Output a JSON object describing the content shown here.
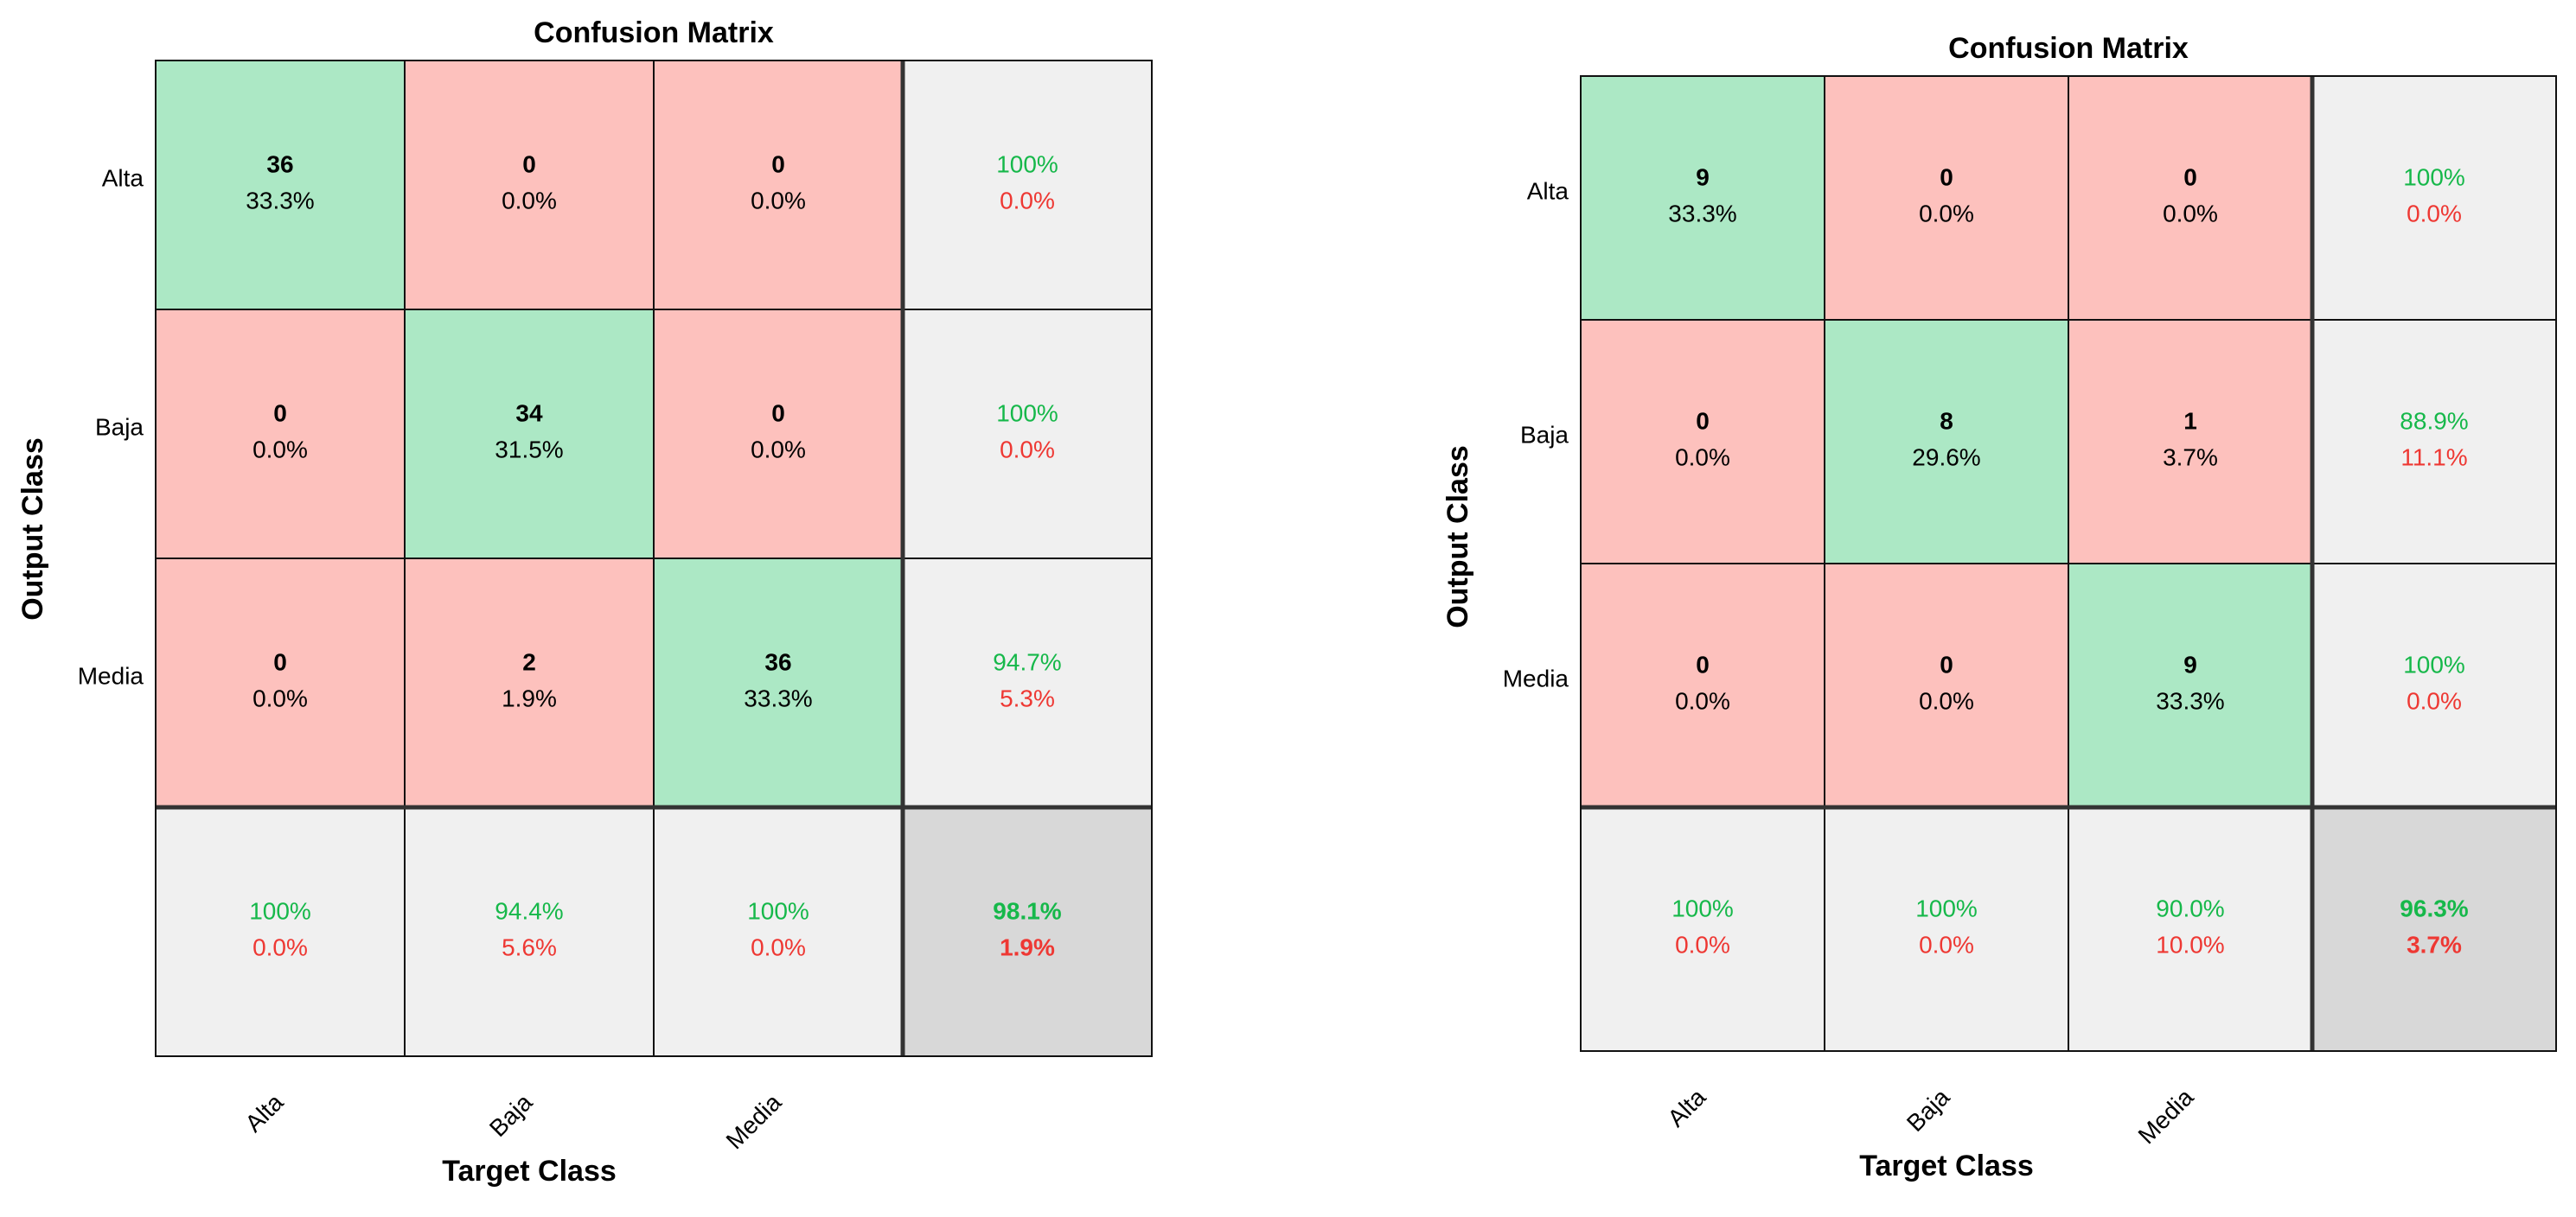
{
  "colors": {
    "correct": "#ace8c5",
    "incorrect": "#fdc1bd",
    "summary": "#f0f0f0",
    "overall": "#d8d8d8",
    "pct_green": "#16b84a",
    "pct_red": "#ee3833",
    "text": "#000000"
  },
  "chart_data": [
    {
      "type": "table",
      "title": "Confusion Matrix",
      "xlabel": "Target Class",
      "ylabel": "Output Class",
      "rows": [
        "Alta",
        "Baja",
        "Media"
      ],
      "cols": [
        "Alta",
        "Baja",
        "Media"
      ],
      "counts": [
        [
          36,
          0,
          0
        ],
        [
          0,
          34,
          0
        ],
        [
          0,
          2,
          36
        ]
      ],
      "cell_pct": [
        [
          "33.3%",
          "0.0%",
          "0.0%"
        ],
        [
          "0.0%",
          "31.5%",
          "0.0%"
        ],
        [
          "0.0%",
          "1.9%",
          "33.3%"
        ]
      ],
      "row_summary": [
        [
          "100%",
          "0.0%"
        ],
        [
          "100%",
          "0.0%"
        ],
        [
          "94.7%",
          "5.3%"
        ]
      ],
      "col_summary": [
        [
          "100%",
          "0.0%"
        ],
        [
          "94.4%",
          "5.6%"
        ],
        [
          "100%",
          "0.0%"
        ]
      ],
      "overall": [
        "98.1%",
        "1.9%"
      ]
    },
    {
      "type": "table",
      "title": "Confusion Matrix",
      "xlabel": "Target Class",
      "ylabel": "Output Class",
      "rows": [
        "Alta",
        "Baja",
        "Media"
      ],
      "cols": [
        "Alta",
        "Baja",
        "Media"
      ],
      "counts": [
        [
          9,
          0,
          0
        ],
        [
          0,
          8,
          1
        ],
        [
          0,
          0,
          9
        ]
      ],
      "cell_pct": [
        [
          "33.3%",
          "0.0%",
          "0.0%"
        ],
        [
          "0.0%",
          "29.6%",
          "3.7%"
        ],
        [
          "0.0%",
          "0.0%",
          "33.3%"
        ]
      ],
      "row_summary": [
        [
          "100%",
          "0.0%"
        ],
        [
          "88.9%",
          "11.1%"
        ],
        [
          "100%",
          "0.0%"
        ]
      ],
      "col_summary": [
        [
          "100%",
          "0.0%"
        ],
        [
          "100%",
          "0.0%"
        ],
        [
          "90.0%",
          "10.0%"
        ]
      ],
      "overall": [
        "96.3%",
        "3.7%"
      ]
    }
  ]
}
